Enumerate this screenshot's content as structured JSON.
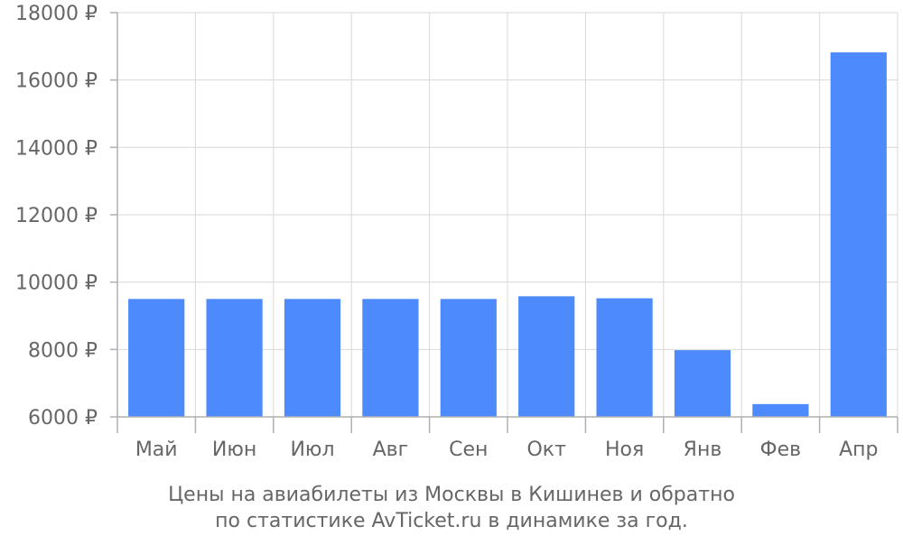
{
  "chart_data": {
    "type": "bar",
    "categories": [
      "Май",
      "Июн",
      "Июл",
      "Авг",
      "Сен",
      "Окт",
      "Ноя",
      "Янв",
      "Фев",
      "Апр"
    ],
    "values": [
      9500,
      9500,
      9500,
      9500,
      9500,
      9580,
      9520,
      7980,
      6380,
      16820
    ],
    "ylim": [
      6000,
      18000
    ],
    "yticks": [
      6000,
      8000,
      10000,
      12000,
      14000,
      16000,
      18000
    ],
    "ytick_labels": [
      "6000 ₽",
      "8000 ₽",
      "10000 ₽",
      "12000 ₽",
      "14000 ₽",
      "16000 ₽",
      "18000 ₽"
    ],
    "grid": true,
    "bar_color": "#4d8afc",
    "caption_lines": [
      "Цены на авиабилеты из Москвы в Кишинев и обратно",
      "по статистике AvTicket.ru в динамике за год."
    ]
  }
}
